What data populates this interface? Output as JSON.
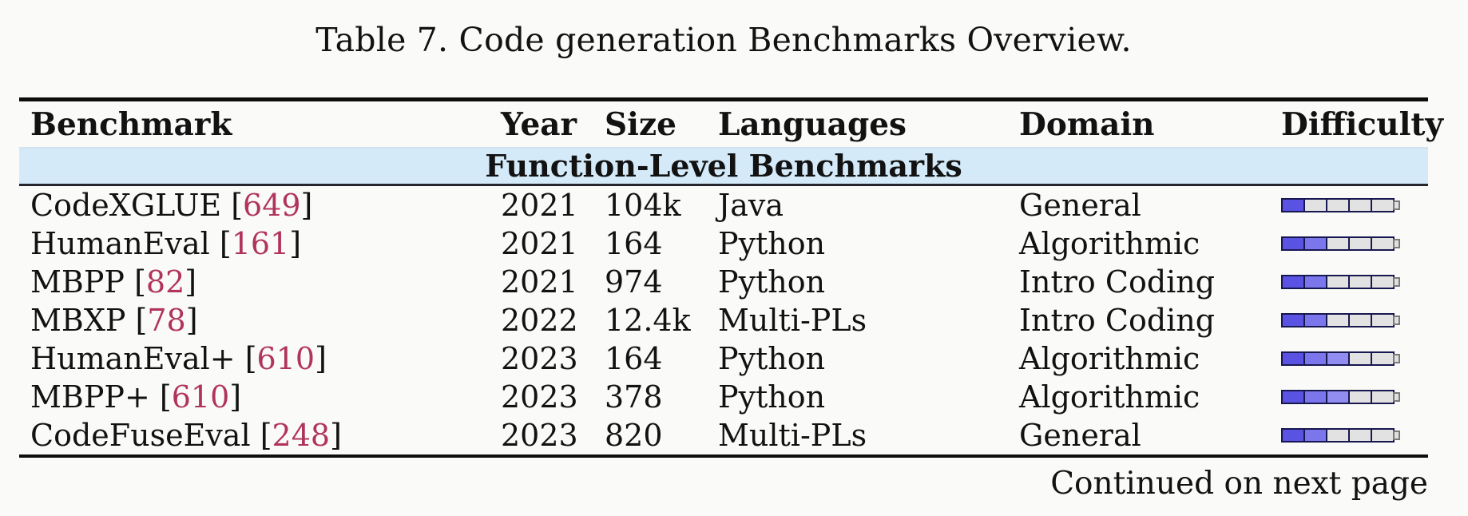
{
  "page": {
    "title": "Table 7. Code generation Benchmarks Overview."
  },
  "table": {
    "headers": [
      "Benchmark",
      "Year",
      "Size",
      "Languages",
      "Domain",
      "Difficulty"
    ],
    "section_label": "Function-Level Benchmarks",
    "cite_brackets": [
      " [",
      "]"
    ],
    "difficulty_scale_max": 5,
    "rows": [
      {
        "benchmark": "CodeXGLUE",
        "cite": "649",
        "year": "2021",
        "size": "104k",
        "languages": "Java",
        "domain": "General",
        "difficulty": 1
      },
      {
        "benchmark": "HumanEval",
        "cite": "161",
        "year": "2021",
        "size": "164",
        "languages": "Python",
        "domain": "Algorithmic",
        "difficulty": 2
      },
      {
        "benchmark": "MBPP",
        "cite": "82",
        "year": "2021",
        "size": "974",
        "languages": "Python",
        "domain": "Intro Coding",
        "difficulty": 2
      },
      {
        "benchmark": "MBXP",
        "cite": "78",
        "year": "2022",
        "size": "12.4k",
        "languages": "Multi-PLs",
        "domain": "Intro Coding",
        "difficulty": 2
      },
      {
        "benchmark": "HumanEval+",
        "cite": "610",
        "year": "2023",
        "size": "164",
        "languages": "Python",
        "domain": "Algorithmic",
        "difficulty": 3
      },
      {
        "benchmark": "MBPP+",
        "cite": "610",
        "year": "2023",
        "size": "378",
        "languages": "Python",
        "domain": "Algorithmic",
        "difficulty": 3
      },
      {
        "benchmark": "CodeFuseEval",
        "cite": "248",
        "year": "2023",
        "size": "820",
        "languages": "Multi-PLs",
        "domain": "General",
        "difficulty": 2
      }
    ],
    "footer_note": "Continued on next page"
  },
  "colors": {
    "citation_red": "#b0345c",
    "section_band_bg": "#d4eaf9",
    "difficulty_filled": [
      "#5952e3",
      "#7b76ec",
      "#928df1"
    ],
    "difficulty_empty": "#e2e2e2",
    "rule_black": "#0d0d0d"
  }
}
